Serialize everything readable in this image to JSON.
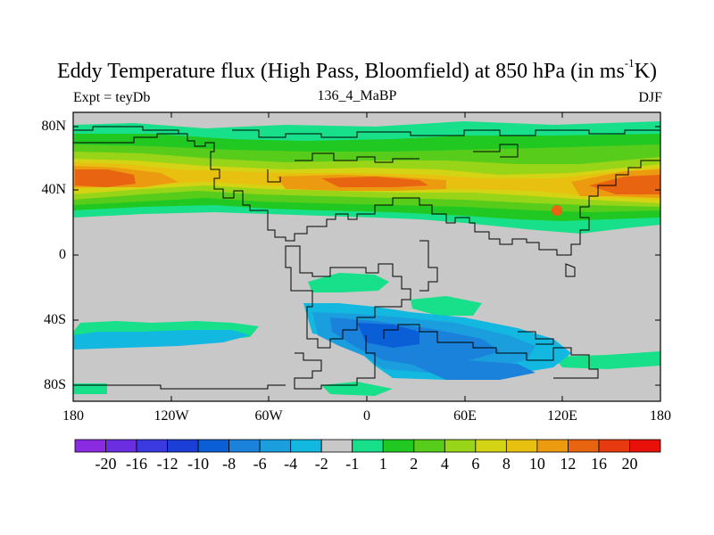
{
  "title_main": "Eddy Temperature flux (High Pass, Bloomfield) at 850 hPa (in ms",
  "title_sup": "-1",
  "title_end": "K)",
  "left_label": "Expt = teyDb",
  "center_label": "136_4_MaBP",
  "right_label": "DJF",
  "lat_labels": [
    "80N",
    "40N",
    "0",
    "40S",
    "80S"
  ],
  "lon_labels": [
    "180",
    "120W",
    "60W",
    "0",
    "60E",
    "120E",
    "180"
  ],
  "colorbar": {
    "labels": [
      "-20",
      "-16",
      "-12",
      "-10",
      "-8",
      "-6",
      "-4",
      "-2",
      "-1",
      "1",
      "2",
      "4",
      "6",
      "8",
      "10",
      "12",
      "16",
      "20"
    ],
    "colors": [
      "#8a2be2",
      "#6a2ee0",
      "#3a3ae0",
      "#1a3ed6",
      "#0a5fd6",
      "#1a82da",
      "#1a9ede",
      "#12b8e0",
      "#c8c8c8",
      "#18e08a",
      "#22c822",
      "#58cc1a",
      "#98d418",
      "#d4d414",
      "#e8c010",
      "#ec9a10",
      "#e86410",
      "#e83a10",
      "#e81008"
    ]
  },
  "map": {
    "missing_color": "#c8c8c8",
    "border_color": "#000000"
  }
}
